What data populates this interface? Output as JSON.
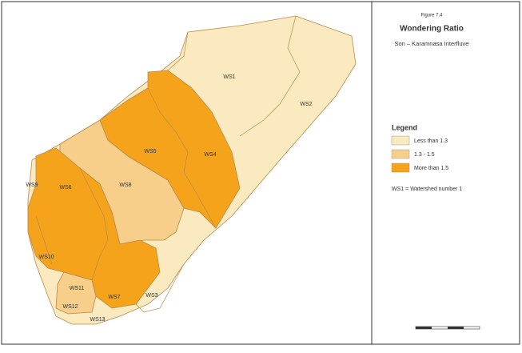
{
  "header": {
    "figure": "Figure 7.4",
    "title": "Wondering Ratio",
    "subtitle": "Son – Karamnasa Interfluve"
  },
  "legend": {
    "title": "Legend",
    "items": [
      {
        "label": "Less than 1.3"
      },
      {
        "label": "1.3 - 1.5"
      },
      {
        "label": "More than 1.5"
      }
    ],
    "note": "WS1 = Watershed number 1"
  },
  "map": {
    "labels": [
      "WS1",
      "WS2",
      "WS4",
      "WS5",
      "WS9",
      "WS6",
      "WS8",
      "WS10",
      "WS11",
      "WS12",
      "WS7",
      "WS3",
      "WS13"
    ]
  }
}
